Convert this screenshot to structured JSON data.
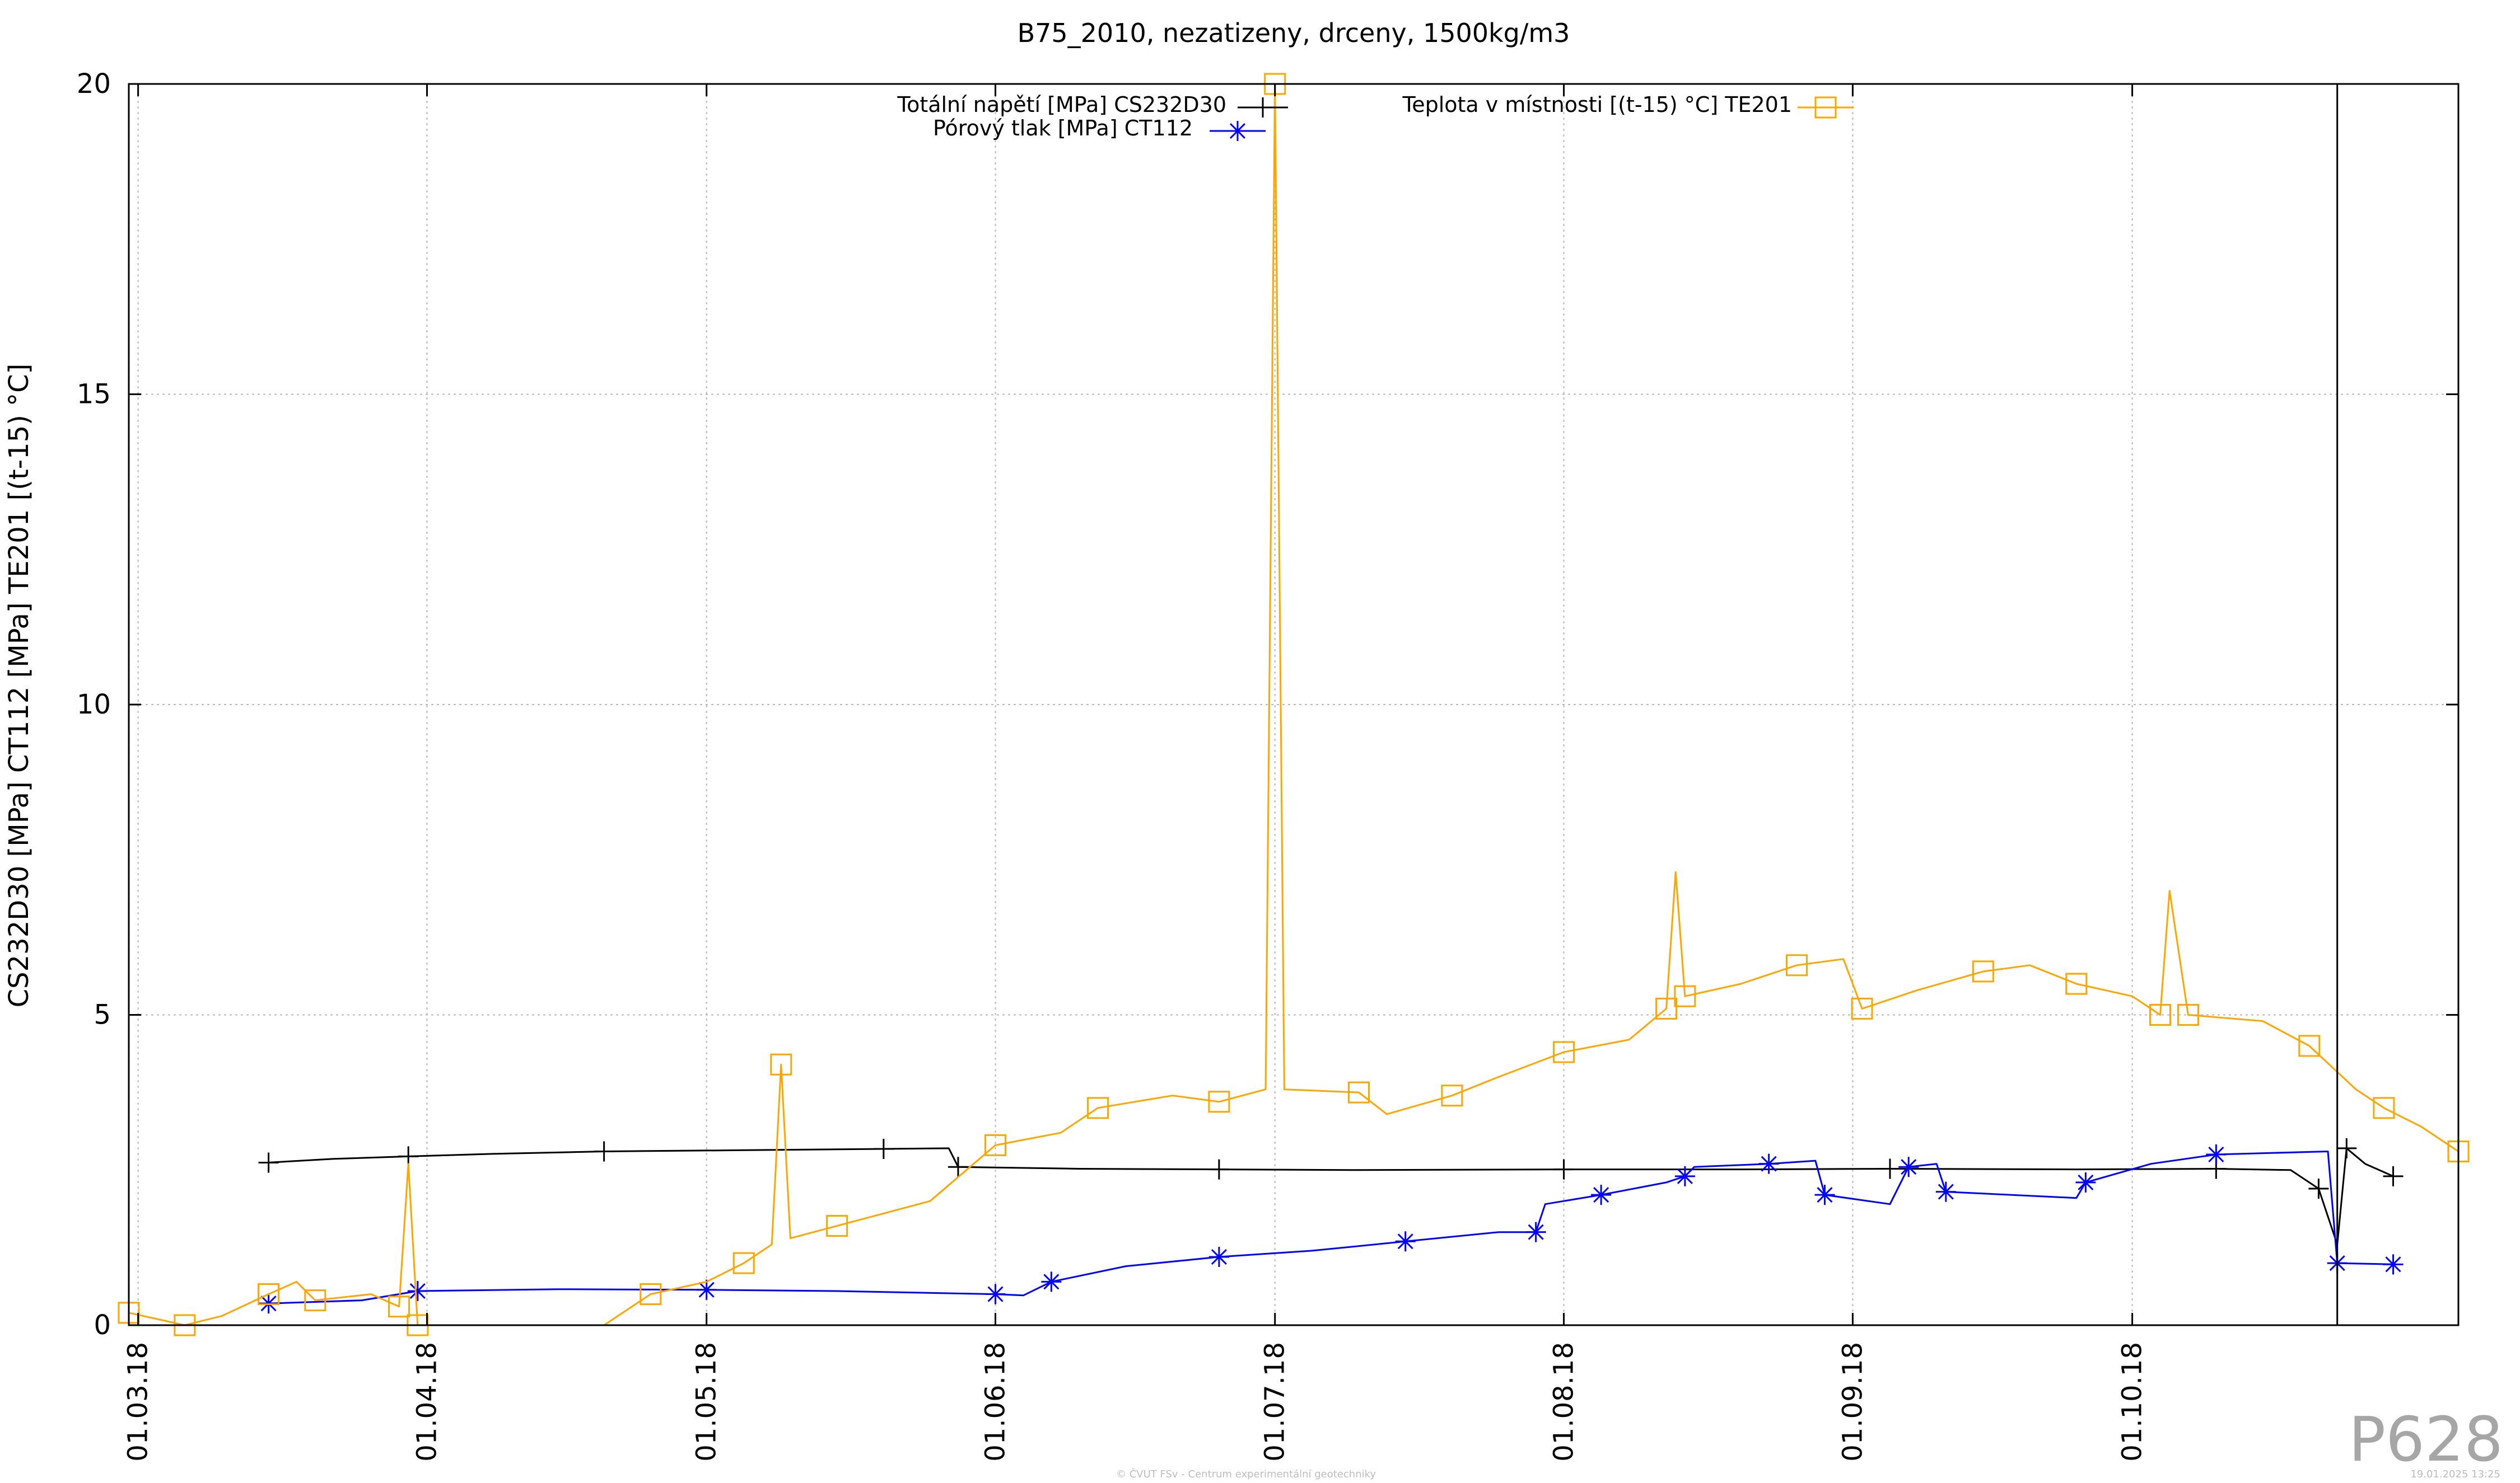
{
  "chart_data": {
    "type": "line",
    "title": "B75_2010, nezatizeny, drceny, 1500kg/m3",
    "xlabel": "",
    "ylabel": "CS232D30 [MPa] CT112 [MPa] TE201 [(t-15) °C]",
    "xlim": [
      "2018-02-28",
      "2018-11-05"
    ],
    "ylim": [
      0,
      20
    ],
    "yticks": [
      0,
      5,
      10,
      15,
      20
    ],
    "ytick_labels": [
      "0",
      "5",
      "10",
      "15",
      "20"
    ],
    "xticks": [
      "2018-03-01",
      "2018-04-01",
      "2018-05-01",
      "2018-06-01",
      "2018-07-01",
      "2018-08-01",
      "2018-09-01",
      "2018-10-01"
    ],
    "xtick_labels": [
      "01.03.18",
      "01.04.18",
      "01.05.18",
      "01.06.18",
      "01.07.18",
      "01.08.18",
      "01.09.18",
      "01.10.18"
    ],
    "grid": true,
    "legend_position": "top",
    "series": [
      {
        "name": "Totální napětí [MPa] CS232D30",
        "color": "#000000",
        "marker": "plus",
        "points": [
          [
            "2018-03-15",
            2.62
          ],
          [
            "2018-03-22",
            2.68
          ],
          [
            "2018-03-30",
            2.72
          ],
          [
            "2018-04-08",
            2.76
          ],
          [
            "2018-04-20",
            2.8
          ],
          [
            "2018-05-05",
            2.82
          ],
          [
            "2018-05-20",
            2.84
          ],
          [
            "2018-05-27",
            2.85
          ],
          [
            "2018-05-28",
            2.55
          ],
          [
            "2018-06-10",
            2.52
          ],
          [
            "2018-06-25",
            2.51
          ],
          [
            "2018-07-10",
            2.5
          ],
          [
            "2018-08-01",
            2.51
          ],
          [
            "2018-08-20",
            2.51
          ],
          [
            "2018-09-05",
            2.52
          ],
          [
            "2018-09-25",
            2.51
          ],
          [
            "2018-10-10",
            2.52
          ],
          [
            "2018-10-18",
            2.5
          ],
          [
            "2018-10-21",
            2.2
          ],
          [
            "2018-10-23",
            1.3
          ],
          [
            "2018-10-24",
            2.85
          ],
          [
            "2018-10-26",
            2.6
          ],
          [
            "2018-10-29",
            2.4
          ]
        ]
      },
      {
        "name": "Pórový tlak [MPa] CT112",
        "color": "#0000ff",
        "marker": "asterisk",
        "points": [
          [
            "2018-03-15",
            0.35
          ],
          [
            "2018-03-25",
            0.4
          ],
          [
            "2018-03-31",
            0.55
          ],
          [
            "2018-04-15",
            0.58
          ],
          [
            "2018-05-01",
            0.57
          ],
          [
            "2018-05-15",
            0.55
          ],
          [
            "2018-06-01",
            0.5
          ],
          [
            "2018-06-04",
            0.48
          ],
          [
            "2018-06-07",
            0.7
          ],
          [
            "2018-06-15",
            0.95
          ],
          [
            "2018-06-25",
            1.1
          ],
          [
            "2018-07-05",
            1.2
          ],
          [
            "2018-07-15",
            1.35
          ],
          [
            "2018-07-25",
            1.5
          ],
          [
            "2018-07-29",
            1.5
          ],
          [
            "2018-07-30",
            1.95
          ],
          [
            "2018-08-05",
            2.1
          ],
          [
            "2018-08-12",
            2.3
          ],
          [
            "2018-08-14",
            2.4
          ],
          [
            "2018-08-15",
            2.55
          ],
          [
            "2018-08-23",
            2.6
          ],
          [
            "2018-08-28",
            2.65
          ],
          [
            "2018-08-29",
            2.1
          ],
          [
            "2018-09-05",
            1.95
          ],
          [
            "2018-09-07",
            2.55
          ],
          [
            "2018-09-10",
            2.6
          ],
          [
            "2018-09-11",
            2.15
          ],
          [
            "2018-09-25",
            2.05
          ],
          [
            "2018-09-26",
            2.3
          ],
          [
            "2018-10-03",
            2.6
          ],
          [
            "2018-10-10",
            2.75
          ],
          [
            "2018-10-22",
            2.8
          ],
          [
            "2018-10-23",
            1.0
          ],
          [
            "2018-10-29",
            0.98
          ]
        ]
      },
      {
        "name": "Teplota v místnosti [(t-15) °C] TE201",
        "color": "#ffa500",
        "marker": "square",
        "points": [
          [
            "2018-02-28",
            0.2
          ],
          [
            "2018-03-03",
            0.1
          ],
          [
            "2018-03-06",
            0.0
          ],
          [
            "2018-03-10",
            0.15
          ],
          [
            "2018-03-15",
            0.5
          ],
          [
            "2018-03-18",
            0.7
          ],
          [
            "2018-03-20",
            0.4
          ],
          [
            "2018-03-26",
            0.5
          ],
          [
            "2018-03-29",
            0.3
          ],
          [
            "2018-03-30",
            2.6
          ],
          [
            "2018-03-31",
            0.0
          ],
          [
            "2018-04-20",
            0.0
          ],
          [
            "2018-04-25",
            0.5
          ],
          [
            "2018-05-01",
            0.7
          ],
          [
            "2018-05-05",
            1.0
          ],
          [
            "2018-05-08",
            1.3
          ],
          [
            "2018-05-09",
            4.2
          ],
          [
            "2018-05-10",
            1.4
          ],
          [
            "2018-05-15",
            1.6
          ],
          [
            "2018-05-25",
            2.0
          ],
          [
            "2018-06-01",
            2.9
          ],
          [
            "2018-06-08",
            3.1
          ],
          [
            "2018-06-12",
            3.5
          ],
          [
            "2018-06-20",
            3.7
          ],
          [
            "2018-06-25",
            3.6
          ],
          [
            "2018-06-30",
            3.8
          ],
          [
            "2018-07-01",
            20.0
          ],
          [
            "2018-07-02",
            3.8
          ],
          [
            "2018-07-10",
            3.75
          ],
          [
            "2018-07-13",
            3.4
          ],
          [
            "2018-07-20",
            3.7
          ],
          [
            "2018-07-25",
            4.0
          ],
          [
            "2018-08-01",
            4.4
          ],
          [
            "2018-08-08",
            4.6
          ],
          [
            "2018-08-12",
            5.1
          ],
          [
            "2018-08-13",
            7.3
          ],
          [
            "2018-08-14",
            5.3
          ],
          [
            "2018-08-20",
            5.5
          ],
          [
            "2018-08-26",
            5.8
          ],
          [
            "2018-08-31",
            5.9
          ],
          [
            "2018-09-02",
            5.1
          ],
          [
            "2018-09-08",
            5.4
          ],
          [
            "2018-09-15",
            5.7
          ],
          [
            "2018-09-20",
            5.8
          ],
          [
            "2018-09-25",
            5.5
          ],
          [
            "2018-10-01",
            5.3
          ],
          [
            "2018-10-04",
            5.0
          ],
          [
            "2018-10-05",
            7.0
          ],
          [
            "2018-10-07",
            5.0
          ],
          [
            "2018-10-15",
            4.9
          ],
          [
            "2018-10-20",
            4.5
          ],
          [
            "2018-10-25",
            3.8
          ],
          [
            "2018-10-28",
            3.5
          ],
          [
            "2018-11-01",
            3.2
          ],
          [
            "2018-11-05",
            2.8
          ]
        ]
      }
    ]
  },
  "watermark": "P628",
  "footer": {
    "copyright": "© ČVUT FSv - Centrum experimentální geotechniky",
    "timestamp": "19.01.2025 13:25"
  }
}
